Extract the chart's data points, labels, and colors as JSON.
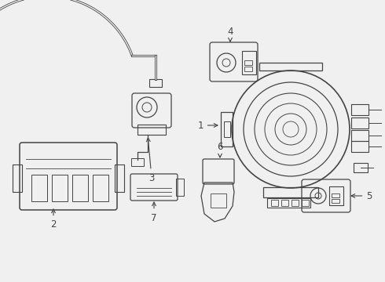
{
  "bg_color": "#f0f0f0",
  "line_color": "#444444",
  "figsize": [
    4.9,
    3.6
  ],
  "dpi": 100,
  "xlim": [
    0,
    490
  ],
  "ylim": [
    0,
    360
  ]
}
